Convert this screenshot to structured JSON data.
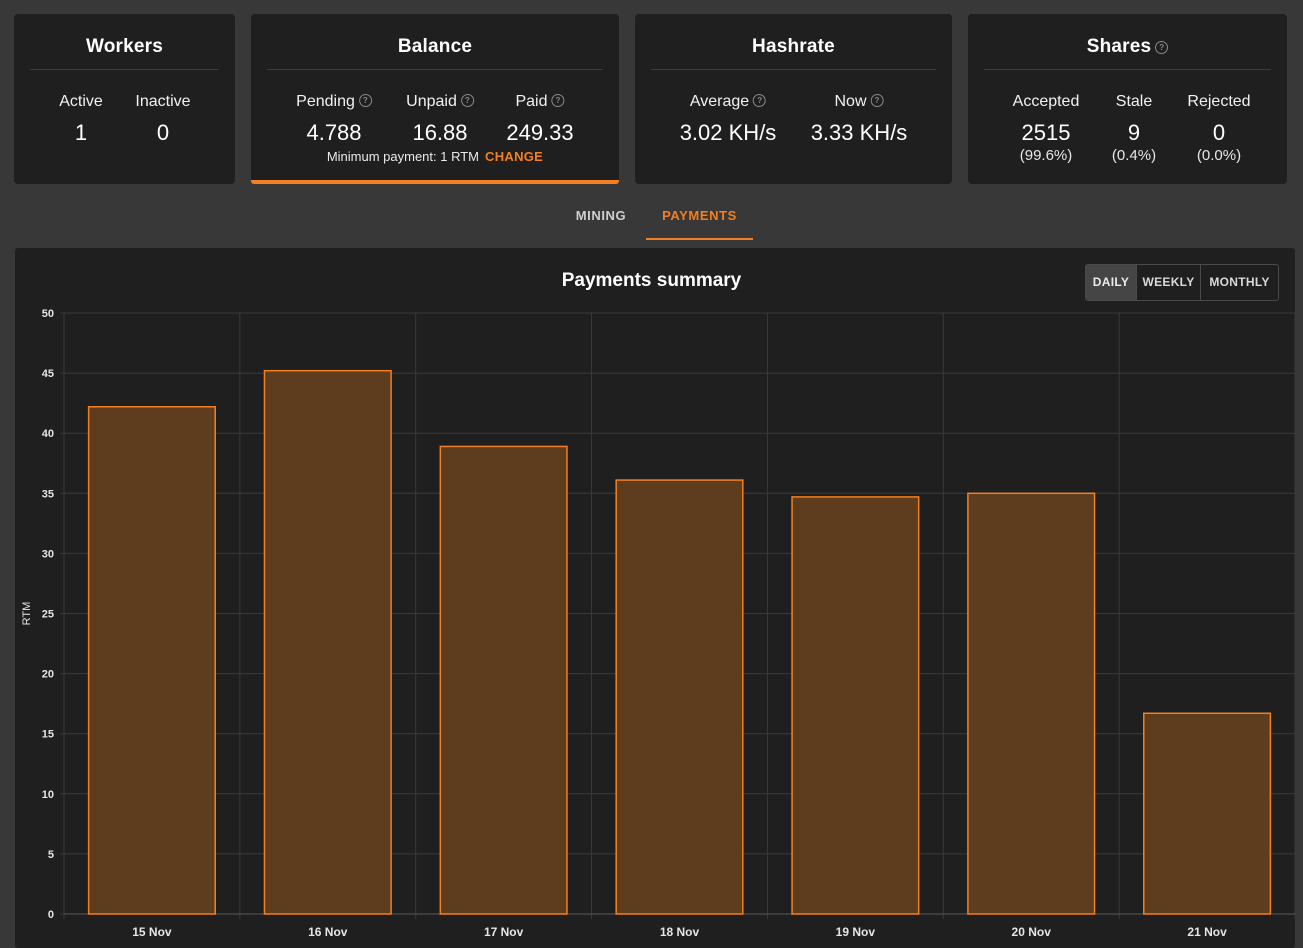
{
  "workers": {
    "title": "Workers",
    "active_label": "Active",
    "active_value": "1",
    "inactive_label": "Inactive",
    "inactive_value": "0"
  },
  "balance": {
    "title": "Balance",
    "pending_label": "Pending",
    "pending_value": "4.788",
    "unpaid_label": "Unpaid",
    "unpaid_value": "16.88",
    "paid_label": "Paid",
    "paid_value": "249.33",
    "min_payment_text": "Minimum payment: 1 RTM",
    "change_label": "CHANGE",
    "accent_color": "#f47f20"
  },
  "hashrate": {
    "title": "Hashrate",
    "average_label": "Average",
    "average_value": "3.02 KH/s",
    "now_label": "Now",
    "now_value": "3.33 KH/s"
  },
  "shares": {
    "title": "Shares",
    "accepted_label": "Accepted",
    "accepted_value": "2515",
    "accepted_pct": "(99.6%)",
    "stale_label": "Stale",
    "stale_value": "9",
    "stale_pct": "(0.4%)",
    "rejected_label": "Rejected",
    "rejected_value": "0",
    "rejected_pct": "(0.0%)"
  },
  "tabs": {
    "mining_label": "MINING",
    "payments_label": "PAYMENTS",
    "active": "PAYMENTS"
  },
  "payments": {
    "title": "Payments summary",
    "range_daily": "DAILY",
    "range_weekly": "WEEKLY",
    "range_monthly": "MONTHLY",
    "active_range": "DAILY"
  },
  "chart_data": {
    "type": "bar",
    "title": "Payments summary",
    "xlabel": "",
    "ylabel": "RTM",
    "categories": [
      "15 Nov",
      "16 Nov",
      "17 Nov",
      "18 Nov",
      "19 Nov",
      "20 Nov",
      "21 Nov"
    ],
    "values": [
      42.2,
      45.2,
      38.9,
      36.1,
      34.7,
      35.0,
      16.7
    ],
    "ylim": [
      0,
      50
    ],
    "yticks": [
      0,
      5,
      10,
      15,
      20,
      25,
      30,
      35,
      40,
      45,
      50
    ],
    "grid": true,
    "bar_fill": "#5e3c1e",
    "bar_stroke": "#f47f20"
  }
}
